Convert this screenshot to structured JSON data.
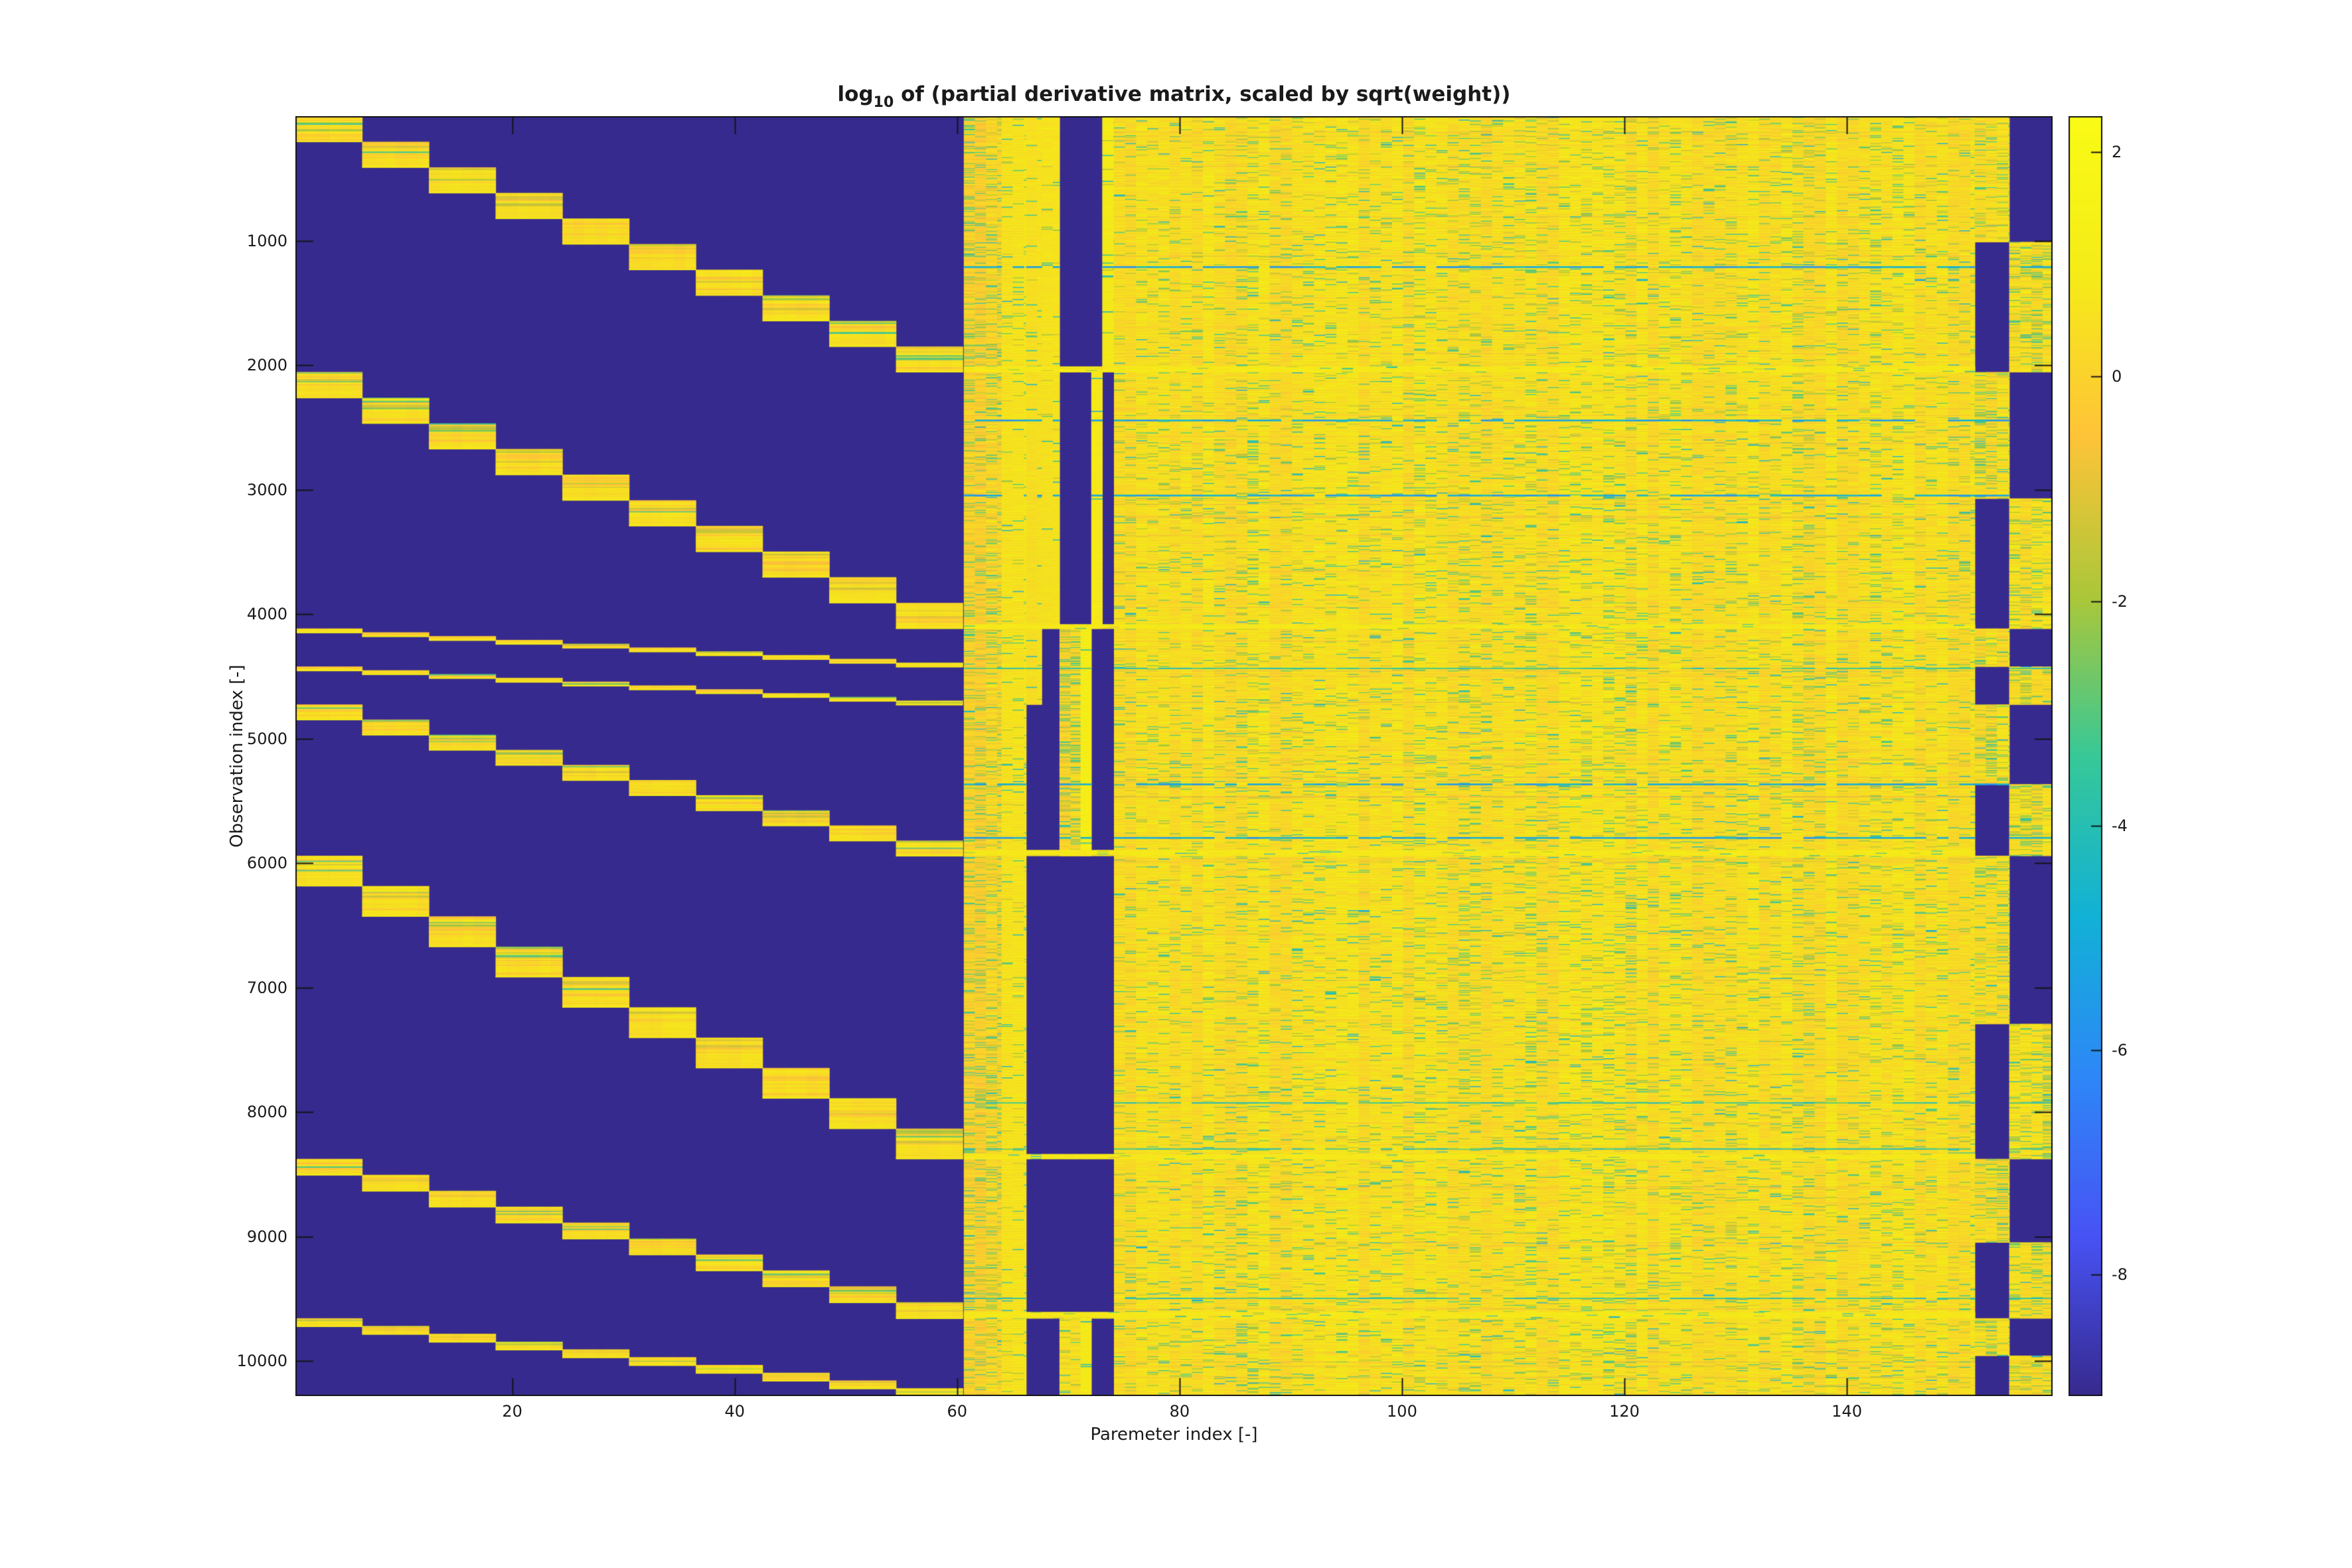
{
  "figure": {
    "title": {
      "prefix": "log",
      "subscript": "10",
      "rest": " of (partial derivative matrix, scaled by sqrt(weight))"
    },
    "xlabel": "Paremeter index [-]",
    "ylabel": "Observation index [-]"
  },
  "axes": {
    "x_ticks": [
      20,
      40,
      60,
      80,
      100,
      120,
      140
    ],
    "y_ticks": [
      1000,
      2000,
      3000,
      4000,
      5000,
      6000,
      7000,
      8000,
      9000,
      10000
    ],
    "x_range": [
      0.5,
      158.5
    ],
    "y_range": [
      0,
      10280
    ]
  },
  "colorbar": {
    "ticks": [
      2,
      0,
      -2,
      -4,
      -6,
      -8
    ],
    "vmax": 2.32,
    "vmin": -9.08
  },
  "chart_data": {
    "type": "heatmap",
    "title": "log10 of (partial derivative matrix, scaled by sqrt(weight))",
    "xlabel": "Paremeter index [-]",
    "ylabel": "Observation index [-]",
    "n_params": 158,
    "n_observations": 10280,
    "colormap": "parula",
    "color_range": [
      -9.08,
      2.32
    ],
    "legend_position": "right colorbar",
    "grid": false,
    "parula_stops": [
      [
        0.2148,
        0.1646,
        0.555
      ],
      [
        0.281,
        0.3228,
        0.9579
      ],
      [
        0.1786,
        0.5289,
        0.9682
      ],
      [
        0.0689,
        0.6948,
        0.8394
      ],
      [
        0.2161,
        0.7843,
        0.5923
      ],
      [
        0.672,
        0.7793,
        0.2227
      ],
      [
        0.997,
        0.7659,
        0.2199
      ],
      [
        0.9598,
        0.9218,
        0.0948
      ],
      [
        0.9769,
        0.9839,
        0.0805
      ]
    ],
    "structure": {
      "background": "dark-blue minimum value (zero derivatives)",
      "segments": [
        [
          0,
          2055
        ],
        [
          2055,
          4115
        ],
        [
          4115,
          4420
        ],
        [
          4420,
          4725
        ],
        [
          4725,
          5940
        ],
        [
          5940,
          8375
        ],
        [
          8375,
          9655
        ],
        [
          9655,
          10280
        ]
      ],
      "staircase": {
        "param_span": [
          1,
          60
        ],
        "blocks_per_segment": 10,
        "block_width_params": 6,
        "stripe_values": [
          0.5,
          0.2,
          -0.3,
          -1.0,
          -2.4
        ],
        "bottom_value": 0.42,
        "final_row_value": 0.9
      },
      "texture_regions": [
        {
          "name": "striped-band",
          "params": [
            60.6,
            64.0
          ],
          "obs": [
            0,
            10280
          ],
          "base": 0.0,
          "colVar": 0.2,
          "rowVar": 0.45,
          "greenP": 0.17,
          "chunk": 6
        },
        {
          "name": "bright-band",
          "params": [
            64.0,
            66.2
          ],
          "obs": [
            0,
            10280
          ],
          "base": 0.68,
          "colVar": 0.1,
          "rowVar": 0.22,
          "greenP": 0.04,
          "chunk": 7
        },
        {
          "name": "flat-yellow-1",
          "params": [
            66.2,
            67.6
          ],
          "obs": [
            0,
            4725
          ],
          "base": 0.55,
          "colVar": 0.08,
          "rowVar": 0.18,
          "greenP": 0.02,
          "chunk": 8
        },
        {
          "name": "flat-yellow-2",
          "params": [
            67.6,
            69.2
          ],
          "obs": [
            0,
            4115
          ],
          "base": 0.55,
          "colVar": 0.08,
          "rowVar": 0.18,
          "greenP": 0.02,
          "chunk": 8
        },
        {
          "name": "mid-texture",
          "params": [
            69.2,
            71.1
          ],
          "obs": [
            4115,
            5940
          ],
          "base": 0.2,
          "colVar": 0.15,
          "rowVar": 0.4,
          "greenP": 0.12,
          "chunk": 6
        },
        {
          "name": "mid-texture-low",
          "params": [
            69.2,
            71.1
          ],
          "obs": [
            9655,
            10280
          ],
          "base": 0.5,
          "colVar": 0.1,
          "rowVar": 0.3,
          "greenP": 0.06,
          "chunk": 6
        },
        {
          "name": "bright-col-mid",
          "params": [
            71.1,
            72.06
          ],
          "obs": [
            4115,
            5940
          ],
          "base": 1.25,
          "colVar": 0.0,
          "rowVar": 0.15,
          "greenP": 0.0,
          "chunk": 8
        },
        {
          "name": "bright-col-low",
          "params": [
            71.1,
            72.06
          ],
          "obs": [
            9655,
            10280
          ],
          "base": 0.95,
          "colVar": 0.0,
          "rowVar": 0.2,
          "greenP": 0.01,
          "chunk": 8
        },
        {
          "name": "bright-col-seg2",
          "params": [
            72.06,
            73.05
          ],
          "obs": [
            2055,
            4115
          ],
          "base": 0.8,
          "colVar": 0.0,
          "rowVar": 0.12,
          "greenP": 0.01,
          "chunk": 8
        },
        {
          "name": "bright-col-seg1",
          "params": [
            73.05,
            74.1
          ],
          "obs": [
            0,
            2055
          ],
          "base": 0.9,
          "colVar": 0.0,
          "rowVar": 0.12,
          "greenP": 0.01,
          "chunk": 8
        },
        {
          "name": "main-field",
          "params": [
            74.1,
            151.5
          ],
          "obs": [
            0,
            10280
          ],
          "base": 0.45,
          "colVar": 0.22,
          "rowVar": 0.38,
          "greenP": 0.07,
          "chunk": 7,
          "globalRows": true
        }
      ],
      "far_right": {
        "group_a_params": [
          151.5,
          154.6
        ],
        "group_b_params": [
          154.6,
          158.5
        ],
        "flip_boundaries": [
          0,
          1010,
          2055,
          3070,
          4115,
          4420,
          4725,
          5365,
          5940,
          7290,
          8375,
          9045,
          9655,
          9955,
          10280
        ],
        "group_a_on_intervals": "even",
        "texture": {
          "base": 0.4,
          "colVar": 0.2,
          "rowVar": 0.45,
          "greenP": 0.15,
          "chunk": 6
        }
      },
      "teal_streak_rows": [
        1205,
        2437,
        3040,
        4430,
        5360,
        5790,
        7920,
        8290,
        9490
      ],
      "bright_boundary_rows": [
        2055,
        4115,
        5940,
        8375,
        9655
      ]
    }
  }
}
